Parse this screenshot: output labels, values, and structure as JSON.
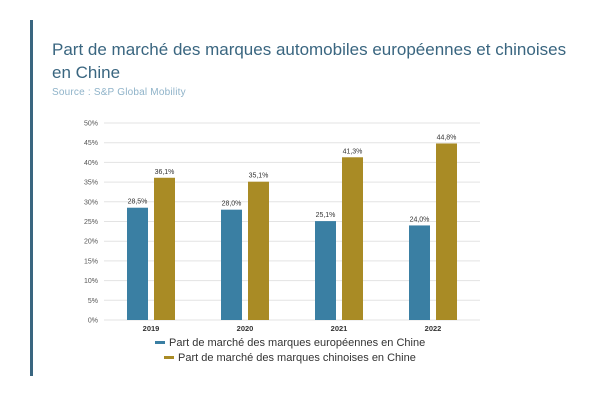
{
  "header": {
    "title": "Part de marché des marques automobiles européennes et chinoises en Chine",
    "source": "Source : S&P Global Mobility"
  },
  "colors": {
    "accent": "#3a6680",
    "european": "#3a7fa3",
    "chinese": "#a98b25",
    "grid": "#e3e3e3",
    "axis_text": "#555555"
  },
  "chart_data": {
    "type": "bar",
    "categories": [
      "2019",
      "2020",
      "2021",
      "2022"
    ],
    "series": [
      {
        "name": "Part de marché des marques européennes en Chine",
        "values": [
          28.5,
          28.0,
          25.1,
          24.0
        ],
        "labels": [
          "28,5%",
          "28,0%",
          "25,1%",
          "24,0%"
        ]
      },
      {
        "name": "Part de marché des marques chinoises en Chine",
        "values": [
          36.1,
          35.1,
          41.3,
          44.8
        ],
        "labels": [
          "36,1%",
          "35,1%",
          "41,3%",
          "44,8%"
        ]
      }
    ],
    "y_ticks": [
      "0%",
      "5%",
      "10%",
      "15%",
      "20%",
      "25%",
      "30%",
      "35%",
      "40%",
      "45%",
      "50%"
    ],
    "ylim": [
      0,
      50
    ],
    "grid": true,
    "legend_position": "bottom"
  }
}
